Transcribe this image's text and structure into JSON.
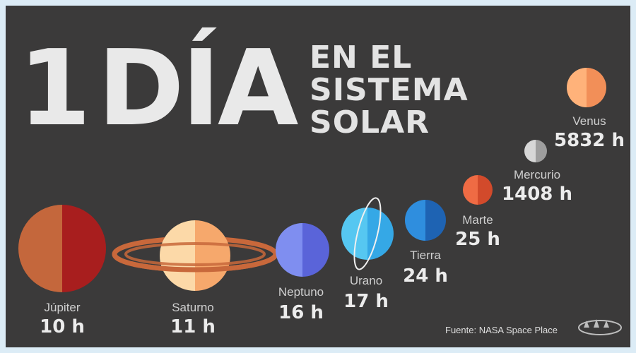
{
  "title": {
    "number": "1",
    "word": "DÍA",
    "line1": "EN EL",
    "line2": "SISTEMA",
    "line3": "SOLAR"
  },
  "planets": [
    {
      "name": "Júpiter",
      "hours": "10 h",
      "color_left": "#c4673c",
      "color_right": "#a81e1e"
    },
    {
      "name": "Saturno",
      "hours": "11 h",
      "color_left": "#fcd9a8",
      "color_right": "#f6a86c",
      "ring_color": "#c8683b"
    },
    {
      "name": "Neptuno",
      "hours": "16 h",
      "color_left": "#7f8ef0",
      "color_right": "#5a64d9"
    },
    {
      "name": "Urano",
      "hours": "17 h",
      "color_left": "#56c7f1",
      "color_right": "#35a8e6"
    },
    {
      "name": "Tierra",
      "hours": "24 h",
      "color_left": "#2f8ede",
      "color_right": "#1e63b3"
    },
    {
      "name": "Marte",
      "hours": "25 h",
      "color_left": "#ef6b44",
      "color_right": "#d24a2b"
    },
    {
      "name": "Mercurio",
      "hours": "1408 h",
      "color_left": "#d7d7d7",
      "color_right": "#9e9e9e"
    },
    {
      "name": "Venus",
      "hours": "5832 h",
      "color_left": "#ffb27a",
      "color_right": "#f28f58"
    }
  ],
  "source": "Fuente: NASA Space Place",
  "logo_text": "star trek",
  "colors": {
    "background": "#3b3a3a",
    "frame": "#dcecf6",
    "title": "#e9e9e9"
  }
}
